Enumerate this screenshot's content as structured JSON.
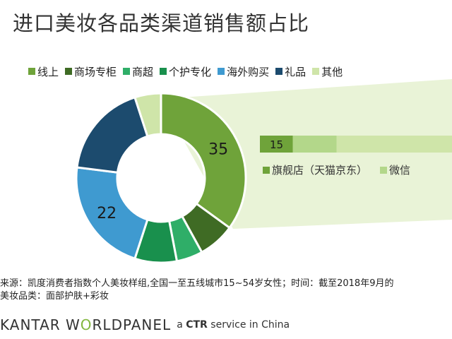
{
  "title": "进口美妆各品类渠道销售额占比",
  "legend": [
    {
      "label": "线上",
      "color": "#6fa33a"
    },
    {
      "label": "商场专柜",
      "color": "#3f6b24"
    },
    {
      "label": "商超",
      "color": "#2fae68"
    },
    {
      "label": "个护专化",
      "color": "#19904d"
    },
    {
      "label": "海外购买",
      "color": "#3f9ad0"
    },
    {
      "label": "礼品",
      "color": "#1c4b6e"
    },
    {
      "label": "其他",
      "color": "#cfe5a9"
    }
  ],
  "chart_data": [
    {
      "type": "pie",
      "series": [
        {
          "label": "线上",
          "value": 35,
          "color": "#6fa33a",
          "data_label": "35"
        },
        {
          "label": "商场专柜",
          "value": 7,
          "color": "#3f6b24",
          "data_label": ""
        },
        {
          "label": "商超",
          "value": 5,
          "color": "#2fae68",
          "data_label": ""
        },
        {
          "label": "个护专化",
          "value": 8,
          "color": "#19904d",
          "data_label": ""
        },
        {
          "label": "海外购买",
          "value": 22,
          "color": "#3f9ad0",
          "data_label": "22"
        },
        {
          "label": "礼品",
          "value": 18,
          "color": "#1c4b6e",
          "data_label": ""
        },
        {
          "label": "其他",
          "value": 5,
          "color": "#cfe5a9",
          "data_label": ""
        }
      ]
    },
    {
      "type": "bar",
      "orientation": "horizontal-stacked",
      "series": [
        {
          "name": "旗舰店（天猫京东）",
          "value": 15,
          "color": "#6fa33a",
          "data_label": "15"
        },
        {
          "name": "微信",
          "value": 20,
          "color": "#b3d78a",
          "data_label": ""
        }
      ]
    }
  ],
  "sub_legend": [
    {
      "label": "旗舰店（天猫京东）",
      "color": "#6fa33a"
    },
    {
      "label": "微信",
      "color": "#b3d78a"
    }
  ],
  "notes": {
    "source": "来源：凯度消费者指数个人美妆样组,全国一至五线城市15~54岁女性；时间：截至2018年9月的",
    "category": "美妆品类：面部护肤+彩妆"
  },
  "footer": {
    "brand_1": "KANTAR W",
    "brand_2": "O",
    "brand_3": "RLDPANEL",
    "tagline_1": "a",
    "tagline_2": "CTR",
    "tagline_3": "service in China"
  }
}
